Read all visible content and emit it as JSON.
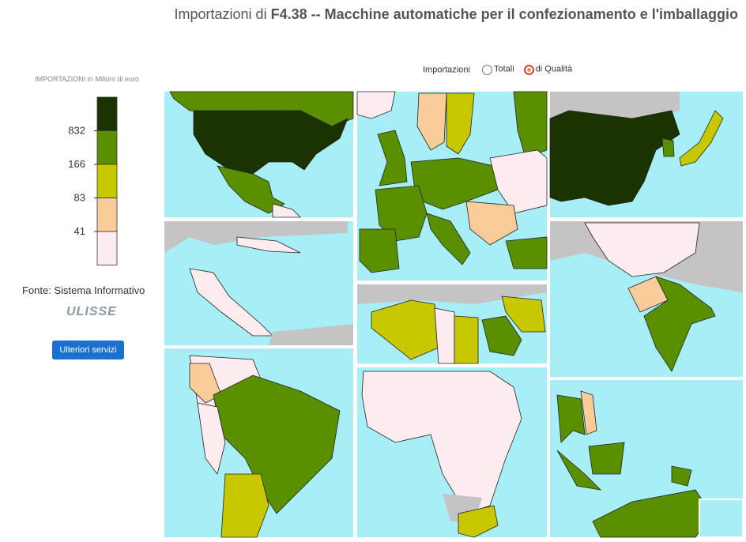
{
  "header": {
    "title_prefix": "Importazioni di",
    "title_main": "F4.38 -- Macchine automatiche per il confezionamento e l'imballaggio"
  },
  "controls": {
    "label": "Importazioni",
    "options": [
      "Totali",
      "di Qualità"
    ],
    "selected": 1
  },
  "legend": {
    "title": "IMPORTAZIONI in Milioni di euro",
    "colors": [
      "#1a3300",
      "#5a9000",
      "#c8c800",
      "#f9cc99",
      "#fcecf0"
    ],
    "ticks": [
      832,
      166,
      83,
      41
    ]
  },
  "source": "Fonte: Sistema Informativo",
  "logo": "ULISSE",
  "button": "Ulteriori servizi"
}
